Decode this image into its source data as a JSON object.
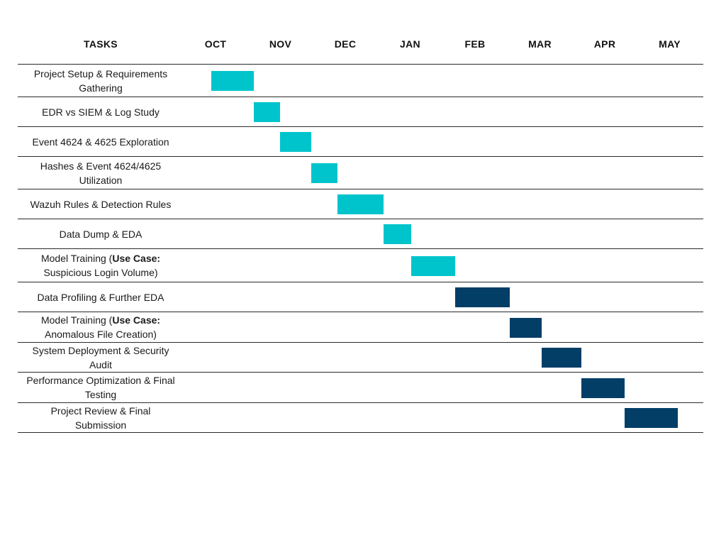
{
  "colors": {
    "phase1": "#00c4cc",
    "phase2": "#023e66",
    "rule": "#2a2a2a"
  },
  "chart_data": {
    "type": "gantt",
    "header": "TASKS",
    "months": [
      "OCT",
      "NOV",
      "DEC",
      "JAN",
      "FEB",
      "MAR",
      "APR",
      "MAY"
    ],
    "tasks": [
      {
        "name": "Project Setup & Requirements Gathering",
        "start": 0.0,
        "end": 0.65,
        "phase": "phase1"
      },
      {
        "name": "EDR vs SIEM & Log Study",
        "start": 0.65,
        "end": 1.05,
        "phase": "phase1"
      },
      {
        "name": "Event 4624 & 4625 Exploration",
        "start": 1.05,
        "end": 1.53,
        "phase": "phase1"
      },
      {
        "name": "Hashes & Event 4624/4625 Utilization",
        "start": 1.53,
        "end": 1.93,
        "phase": "phase1"
      },
      {
        "name": "Wazuh Rules & Detection Rules",
        "start": 1.93,
        "end": 2.64,
        "phase": "phase1"
      },
      {
        "name": "Data Dump & EDA",
        "start": 2.64,
        "end": 3.07,
        "phase": "phase1"
      },
      {
        "name": "Model Training (",
        "bold": "Use Case:",
        "name_tail": " Suspicious Login Volume)",
        "start": 3.07,
        "end": 3.74,
        "phase": "phase1"
      },
      {
        "name": "Data Profiling & Further EDA",
        "start": 3.74,
        "end": 4.58,
        "phase": "phase2"
      },
      {
        "name": "Model Training (",
        "bold": "Use Case:",
        "name_tail": " Anomalous File Creation)",
        "start": 4.58,
        "end": 5.07,
        "phase": "phase2"
      },
      {
        "name": "System Deployment & Security Audit",
        "start": 5.07,
        "end": 5.67,
        "phase": "phase2"
      },
      {
        "name": "Performance Optimization & Final Testing",
        "start": 5.67,
        "end": 6.34,
        "phase": "phase2"
      },
      {
        "name": "Project Review & Final Submission",
        "start": 6.34,
        "end": 7.15,
        "phase": "phase2"
      }
    ]
  }
}
